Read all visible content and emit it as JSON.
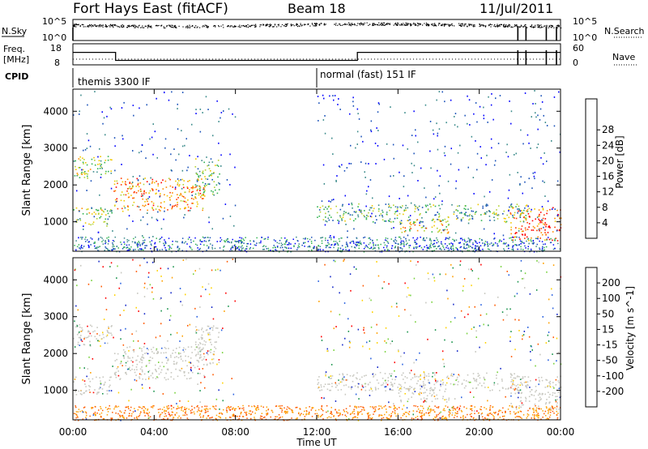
{
  "header": {
    "title": "Fort Hays East (fitACF)",
    "beam": "Beam 18",
    "date": "11/Jul/2011"
  },
  "params": {
    "nsky_label": "N.Sky",
    "nsearch_label": "N.Search",
    "freq_label": "Freq.",
    "freq_unit": "[MHz]",
    "nave_label": "Nave",
    "cpid_label": "CPID",
    "noise_ticks_left": [
      "10^5",
      "10^0"
    ],
    "noise_ticks_right": [
      "10^5",
      "10^0"
    ],
    "freq_ticks": [
      "18",
      "8"
    ],
    "nave_ticks": [
      "60",
      "0"
    ],
    "cpid_segments": [
      {
        "start_hour": 0,
        "label": "themis 3300 IF"
      },
      {
        "start_hour": 12,
        "label": "normal (fast) 151 IF"
      }
    ],
    "freq_profile_mhz": [
      [
        0,
        15
      ],
      [
        2.1,
        15
      ],
      [
        2.1,
        10.5
      ],
      [
        14,
        10.5
      ],
      [
        14,
        15
      ],
      [
        24,
        15
      ]
    ]
  },
  "chart_data": [
    {
      "type": "heatmap",
      "name": "power",
      "ylabel": "Slant Range [km]",
      "xlabel": "",
      "x_ticks": [
        "00:00",
        "04:00",
        "08:00",
        "12:00",
        "16:00",
        "20:00",
        "00:00"
      ],
      "y_ticks": [
        1000,
        2000,
        3000,
        4000
      ],
      "ylim": [
        200,
        4600
      ],
      "xlim_hours": [
        0,
        24
      ],
      "colorbar": {
        "label": "Power [dB]",
        "ticks": [
          "4",
          "8",
          "12",
          "16",
          "20",
          "24",
          "28"
        ],
        "colors": [
          "#0000ff",
          "#1850b8",
          "#3a8a8a",
          "#32b450",
          "#b4d232",
          "#f0c800",
          "#ff8c00",
          "#ff3c00",
          "#ff0000"
        ]
      },
      "regions": [
        {
          "x": [
            0.0,
            1.9
          ],
          "y": [
            2200,
            2800
          ],
          "level": 4
        },
        {
          "x": [
            0.0,
            1.9
          ],
          "y": [
            900,
            1400
          ],
          "level": 4
        },
        {
          "x": [
            2.0,
            6.5
          ],
          "y": [
            1300,
            2200
          ],
          "level": 6
        },
        {
          "x": [
            6.0,
            7.2
          ],
          "y": [
            1700,
            2800
          ],
          "level": 3
        },
        {
          "x": [
            12.0,
            22.5
          ],
          "y": [
            1000,
            1500
          ],
          "level": 3
        },
        {
          "x": [
            16.0,
            18.5
          ],
          "y": [
            700,
            1100
          ],
          "level": 5
        },
        {
          "x": [
            21.5,
            24.0
          ],
          "y": [
            500,
            1400
          ],
          "level": 7
        }
      ]
    },
    {
      "type": "heatmap",
      "name": "velocity",
      "ylabel": "Slant Range [km]",
      "xlabel": "Time UT",
      "x_ticks": [
        "00:00",
        "04:00",
        "08:00",
        "12:00",
        "16:00",
        "20:00",
        "00:00"
      ],
      "y_ticks": [
        1000,
        2000,
        3000,
        4000
      ],
      "ylim": [
        200,
        4600
      ],
      "xlim_hours": [
        0,
        24
      ],
      "colorbar": {
        "label": "Velocity [m s^-1]",
        "ticks": [
          "200",
          "100",
          "50",
          "15",
          "-15",
          "-50",
          "-100",
          "-200"
        ],
        "colors": [
          "#1428c8",
          "#2860e0",
          "#1e9650",
          "#78d23c",
          "#c8c8c0",
          "#ffd200",
          "#ffa000",
          "#ff5a00",
          "#ff0000"
        ]
      },
      "regions": [
        {
          "x": [
            0.0,
            1.9
          ],
          "y": [
            2200,
            2800
          ],
          "level": 4
        },
        {
          "x": [
            0.0,
            1.9
          ],
          "y": [
            900,
            1400
          ],
          "level": 4
        },
        {
          "x": [
            2.0,
            6.5
          ],
          "y": [
            1300,
            2200
          ],
          "level": 4
        },
        {
          "x": [
            6.0,
            7.2
          ],
          "y": [
            1700,
            2800
          ],
          "level": 4
        },
        {
          "x": [
            12.0,
            22.5
          ],
          "y": [
            1000,
            1500
          ],
          "level": 4
        },
        {
          "x": [
            16.0,
            18.5
          ],
          "y": [
            700,
            1100
          ],
          "level": 4
        },
        {
          "x": [
            21.5,
            24.0
          ],
          "y": [
            500,
            1400
          ],
          "level": 4
        }
      ]
    }
  ]
}
